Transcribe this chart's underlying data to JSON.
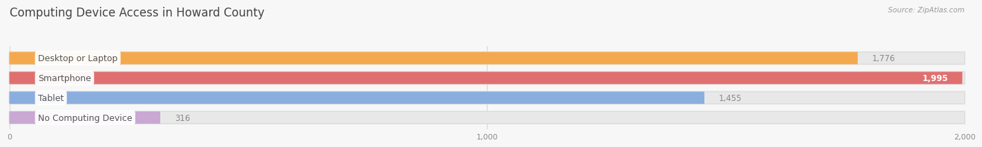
{
  "title": "Computing Device Access in Howard County",
  "source": "Source: ZipAtlas.com",
  "categories": [
    "Desktop or Laptop",
    "Smartphone",
    "Tablet",
    "No Computing Device"
  ],
  "values": [
    1776,
    1995,
    1455,
    316
  ],
  "value_labels": [
    "1,776",
    "1,995",
    "1,455",
    "316"
  ],
  "bar_colors": [
    "#F5A94E",
    "#E07070",
    "#8AAEDD",
    "#C9A8D4"
  ],
  "background_color": "#f7f7f7",
  "bar_bg_color": "#e8e8e8",
  "xlim_max": 2000,
  "xticks": [
    0,
    1000,
    2000
  ],
  "xtick_labels": [
    "0",
    "1,000",
    "2,000"
  ],
  "title_fontsize": 12,
  "label_fontsize": 9,
  "value_fontsize": 8.5,
  "bar_height": 0.62,
  "label_text_color": "#555555",
  "title_color": "#444444",
  "source_color": "#999999",
  "value_color_inside": "#ffffff",
  "value_color_outside": "#888888"
}
